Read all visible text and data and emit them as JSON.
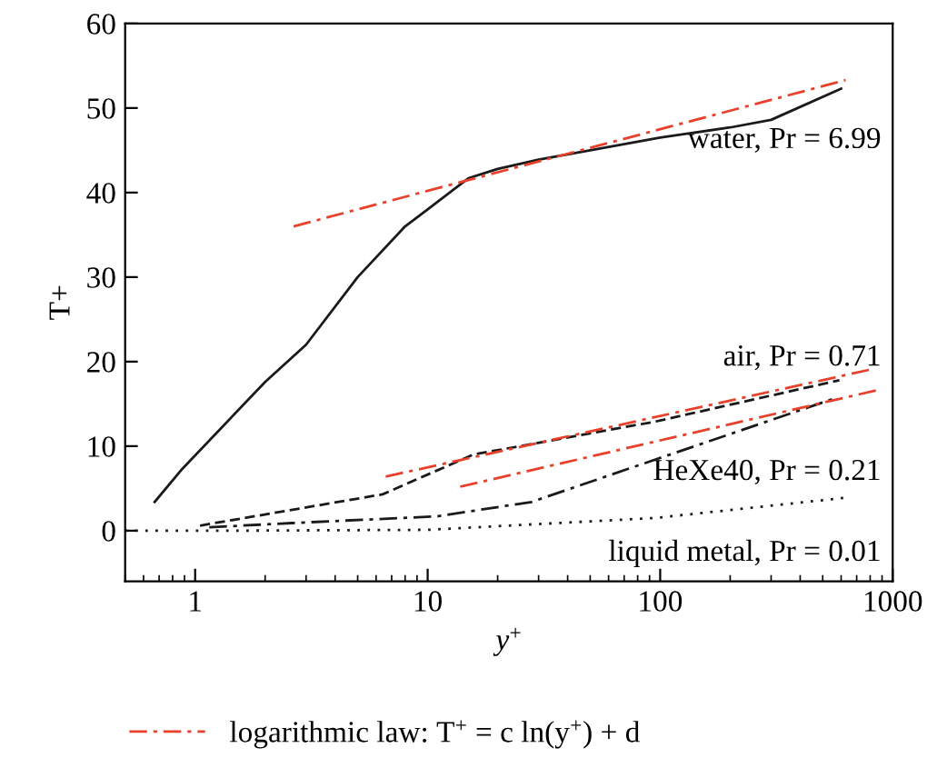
{
  "chart_data": {
    "type": "line",
    "xlabel": "y$^{+}$",
    "ylabel": "T+",
    "log": "x",
    "xlim": [
      0.5,
      1000
    ],
    "ylim": [
      -6,
      60
    ],
    "xticks": [
      1,
      10,
      100,
      1000
    ],
    "yticks": [
      0,
      10,
      20,
      30,
      40,
      50,
      60
    ],
    "grid": false,
    "legend": "bottom",
    "marker": "none",
    "series": [
      {
        "color": "#1a1a1a",
        "line_style": "solid",
        "x": [
          0.67,
          0.88,
          2,
          3,
          5,
          8,
          10,
          15,
          20,
          30,
          50,
          100,
          200,
          300,
          600
        ],
        "values": [
          3.4,
          7.3,
          17.6,
          22,
          30,
          36,
          38,
          41.7,
          42.8,
          43.9,
          45,
          46.5,
          47.7,
          48.6,
          52.3
        ]
      },
      {
        "color": "#1a1a1a",
        "line_style": "dashed",
        "x": [
          1.05,
          6.4,
          15.7,
          95,
          590
        ],
        "values": [
          0.6,
          4.3,
          9,
          12.9,
          17.8
        ]
      },
      {
        "color": "#1a1a1a",
        "line_style": "dashdot",
        "x": [
          1.15,
          2.6,
          11,
          28,
          95,
          570
        ],
        "values": [
          0.4,
          0.9,
          1.7,
          3.4,
          8.4,
          15.7
        ]
      },
      {
        "color": "#1a1a1a",
        "line_style": "dotted",
        "x": [
          0.5,
          1.4,
          10,
          95,
          630
        ],
        "values": [
          0,
          0,
          0.1,
          1.5,
          3.9
        ]
      },
      {
        "name": "logarithmic law: T$^{+}$ = c ln(y$^{+}$) + d",
        "color": "#e8402a",
        "line_style": "dashdot",
        "x": [
          2.65,
          627
        ],
        "values": [
          36,
          53.3
        ]
      },
      {
        "color": "#e8402a",
        "line_style": "dashdot",
        "x": [
          6.6,
          815
        ],
        "values": [
          6.4,
          19.1
        ]
      },
      {
        "color": "#e8402a",
        "line_style": "dashdot",
        "x": [
          13.8,
          850
        ],
        "values": [
          5.2,
          16.6
        ]
      }
    ],
    "annotations": [
      "water, Pr = 6.99",
      "air, Pr = 0.71",
      "HeXe40, Pr = 0.21",
      "liquid metal, Pr = 0.01"
    ]
  }
}
